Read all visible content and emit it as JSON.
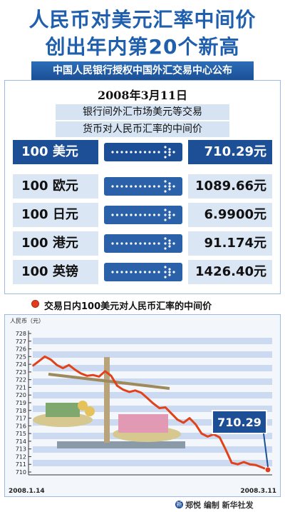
{
  "header": {
    "title_line1": "人民币对美元汇率中间价",
    "title_line2": "创出年内第20个新高",
    "source": "中国人民银行授权中国外汇交易中心公布"
  },
  "rates": {
    "date": "2008年3月11日",
    "subtitle_line1": "银行间外汇市场美元等交易",
    "subtitle_line2": "货币对人民币汇率的中间价",
    "items": [
      {
        "label": "100 美元",
        "value": "710.29元"
      },
      {
        "label": "100 欧元",
        "value": "1089.66元"
      },
      {
        "label": "100 日元",
        "value": "6.9900元"
      },
      {
        "label": "100 港元",
        "value": "91.174元"
      },
      {
        "label": "100 英镑",
        "value": "1426.40元"
      }
    ],
    "highlight_color": "#1d4f97",
    "row_color": "#dbe6f4"
  },
  "chart_data": {
    "type": "line",
    "title": "交易日内100美元对人民币汇率的中间价",
    "ylabel": "人民币（元）",
    "ylim": [
      710,
      728
    ],
    "yticks": [
      710,
      711,
      712,
      713,
      714,
      715,
      716,
      717,
      718,
      719,
      720,
      721,
      722,
      723,
      724,
      725,
      726,
      727,
      728
    ],
    "x_start_label": "2008.1.14",
    "x_end_label": "2008.3.11",
    "callout": "710.29",
    "line_color": "#e2421a",
    "series": [
      {
        "values": [
          723.8,
          724.4,
          725.0,
          724.6,
          723.9,
          723.5,
          723.9,
          723.3,
          722.8,
          722.5,
          722.6,
          722.4,
          723.1,
          722.5,
          721.2,
          720.7,
          720.4,
          720.6,
          720.3,
          719.6,
          718.9,
          718.3,
          718.4,
          717.6,
          716.8,
          716.4,
          717.0,
          716.2,
          715.0,
          714.6,
          714.9,
          714.5,
          712.9,
          711.2,
          711.0,
          711.3,
          711.0,
          710.9,
          710.6,
          710.29
        ]
      }
    ]
  },
  "footer": {
    "credit_mark": "新",
    "credit": "郑悦 编制 新华社发"
  }
}
